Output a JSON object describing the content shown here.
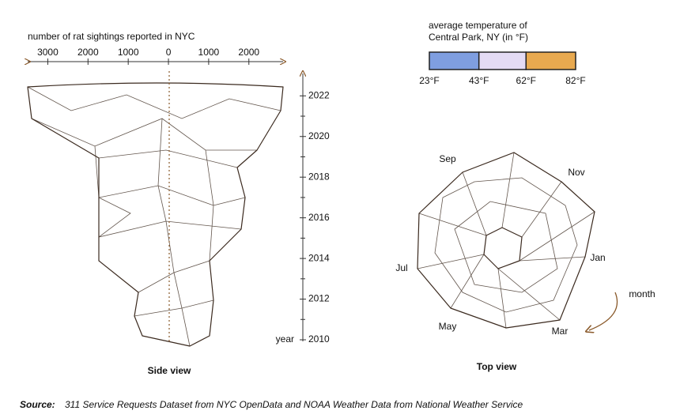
{
  "side_view": {
    "axis_title": "number of rat sightings reported in NYC",
    "xlim": [
      -3500,
      2850
    ],
    "xticks": [
      {
        "value": -3000,
        "label": "3000"
      },
      {
        "value": -2000,
        "label": "2000"
      },
      {
        "value": -1000,
        "label": "1000"
      },
      0,
      1000,
      2000
    ],
    "ylim": [
      2010,
      2023.1
    ],
    "yticks": [
      2010,
      2012,
      2014,
      2016,
      2018,
      2020,
      2022
    ],
    "minor_yticks": [
      2011,
      2013,
      2015,
      2017,
      2019,
      2021
    ],
    "ylabel": "year",
    "caption": "Side view"
  },
  "legend": {
    "title": [
      "average temperature of",
      "Central Park, NY (in °F)"
    ],
    "stops": [
      {
        "value": 23,
        "label": "23°F"
      },
      {
        "value": 43,
        "label": "43°F"
      },
      {
        "value": 62,
        "label": "62°F"
      },
      {
        "value": 82,
        "label": "82°F"
      }
    ],
    "colors": [
      "#7f9ee0",
      "#e4dbf4",
      "#e8a94f"
    ]
  },
  "top_view": {
    "months": [
      "Sep",
      "Nov",
      "Jan",
      "Mar",
      "May",
      "Jul"
    ],
    "direction_label": "month",
    "caption": "Top view"
  },
  "source": {
    "label": "Source:",
    "text": "311 Service Requests Dataset from NYC OpenData and NOAA Weather Data from National Weather Service"
  }
}
